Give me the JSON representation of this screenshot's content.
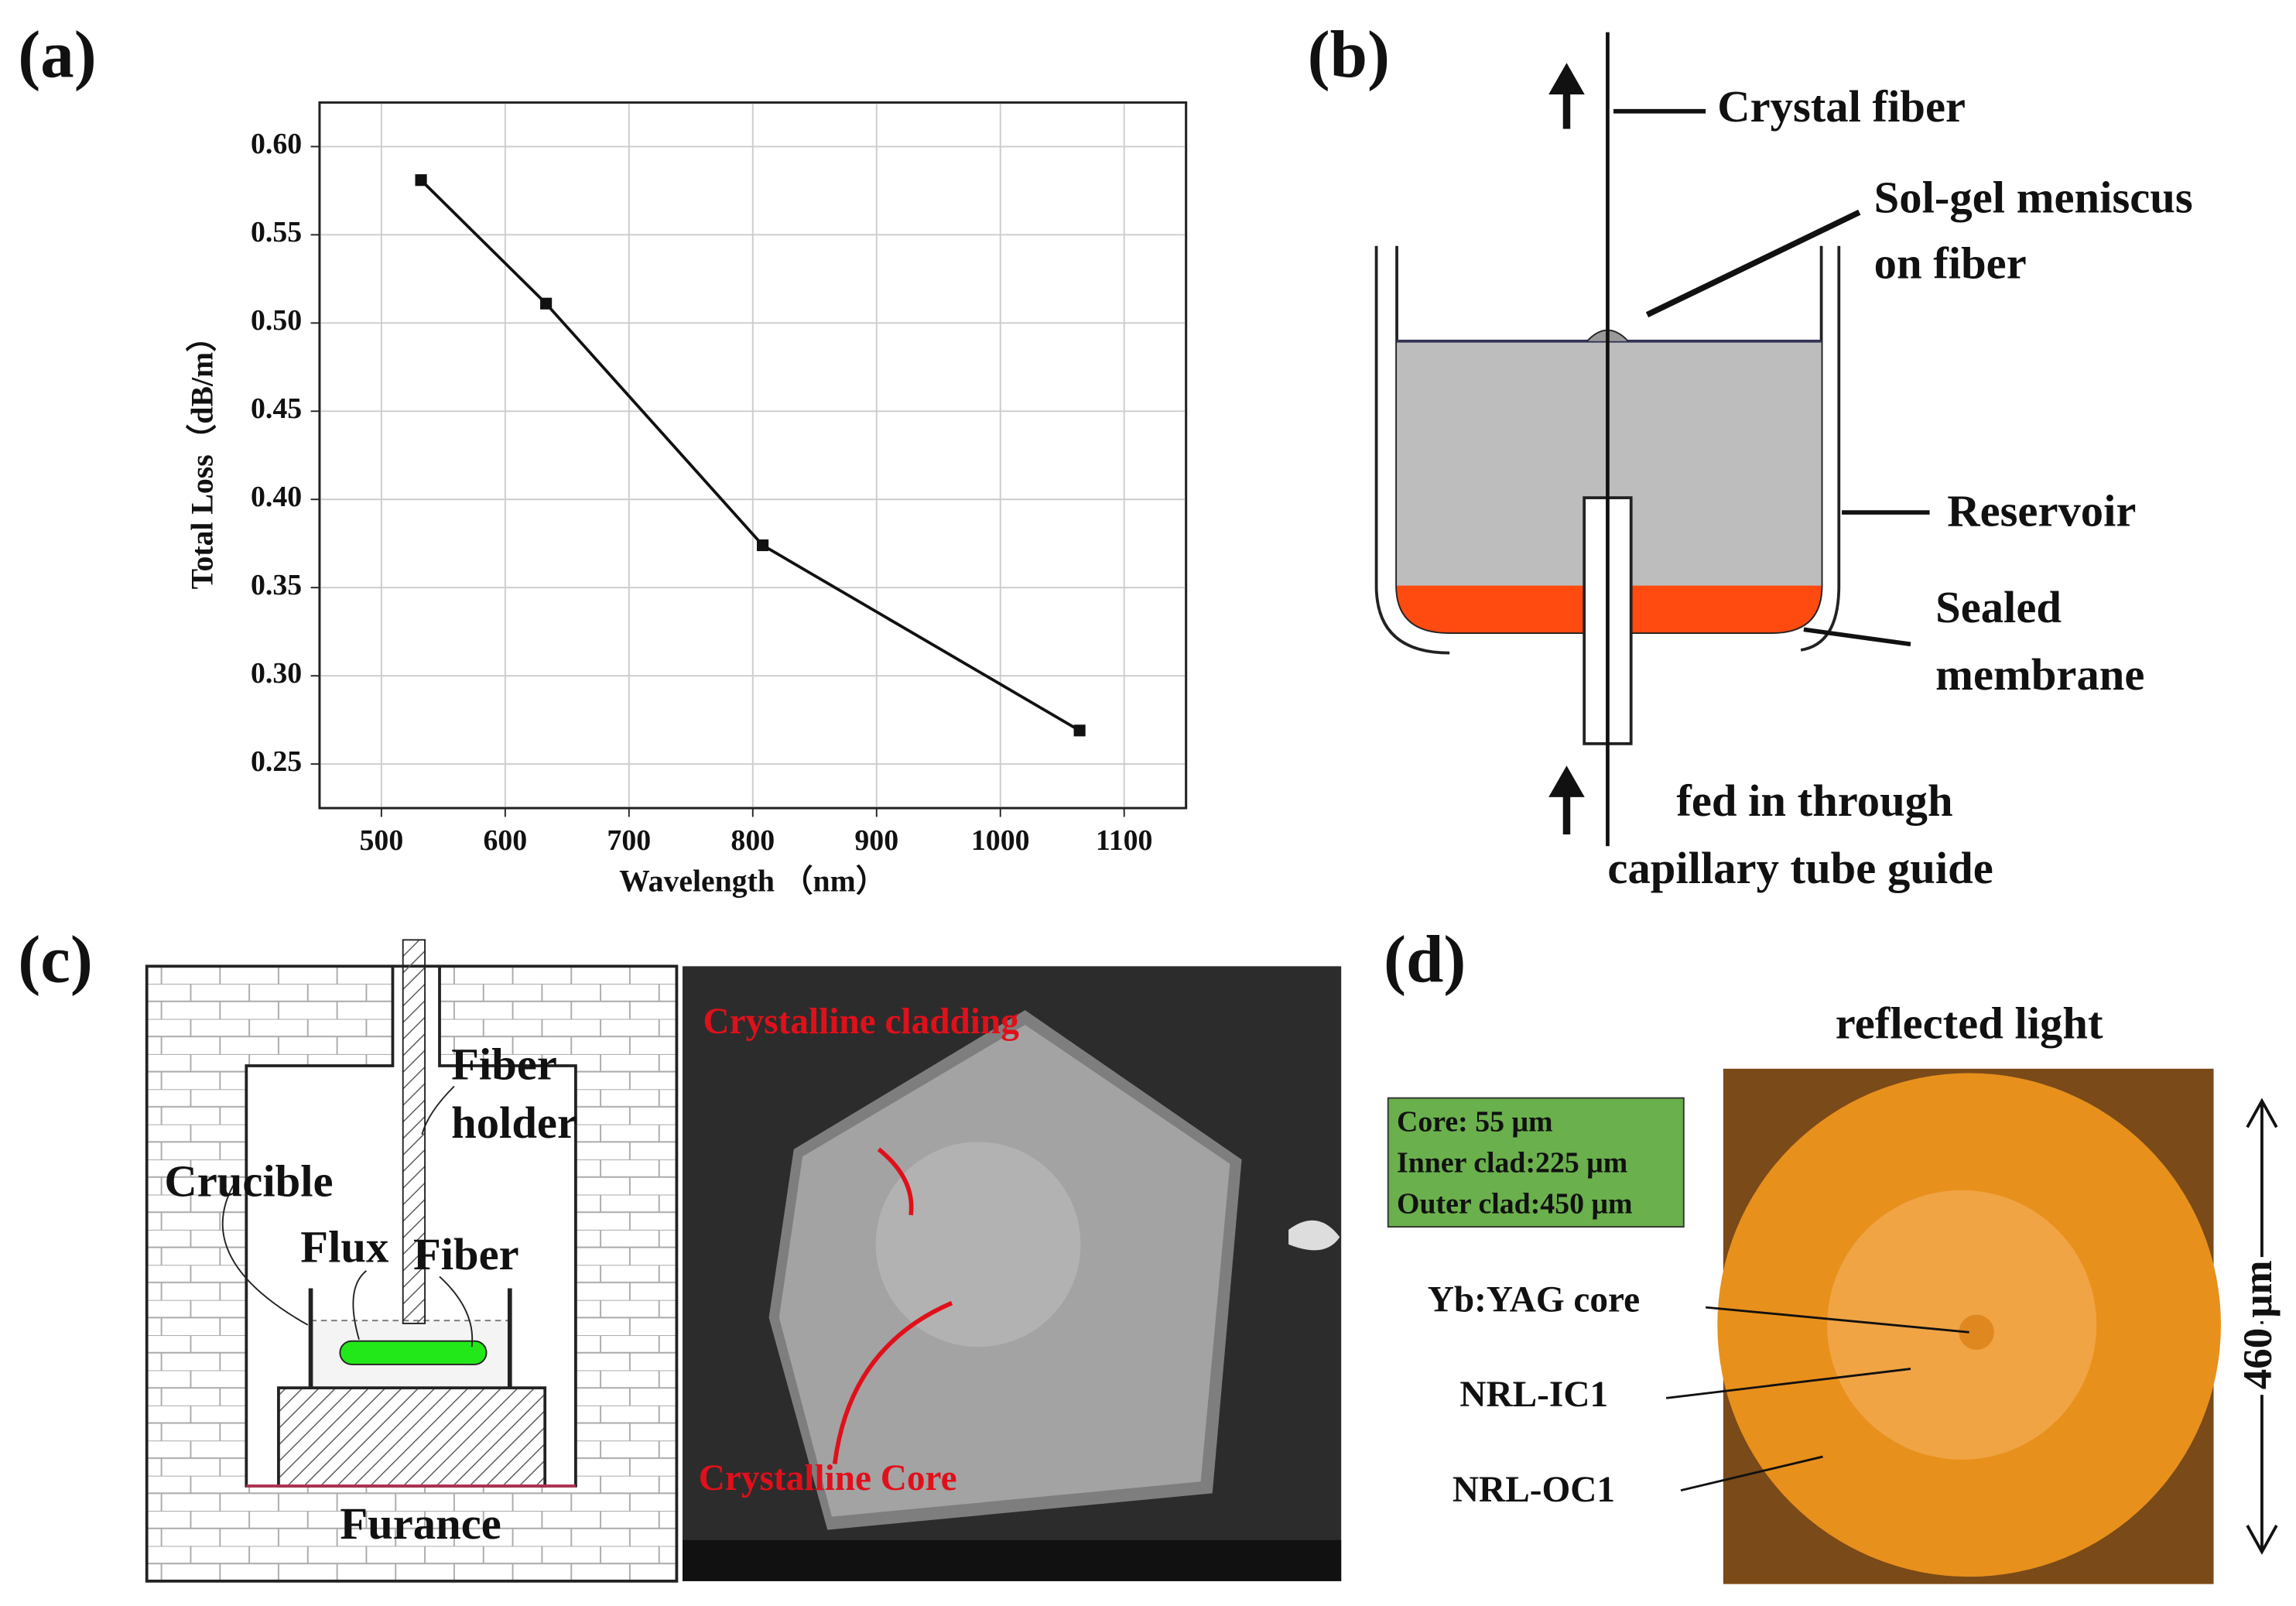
{
  "chart_data": {
    "type": "line",
    "x_label": "Wavelength （nm）",
    "y_label": "Total Loss（dB/m）",
    "series": [
      {
        "name": "Total Loss",
        "color": "#111111",
        "x": [
          532,
          633,
          808,
          1064
        ],
        "values": [
          0.581,
          0.511,
          0.374,
          0.269
        ]
      }
    ],
    "xlim": [
      450,
      1150
    ],
    "ylim": [
      0.225,
      0.625
    ],
    "xticks": [
      500,
      600,
      700,
      800,
      900,
      1000,
      1100
    ],
    "yticks": [
      {
        "value": 0.25,
        "label": "0.25"
      },
      {
        "value": 0.3,
        "label": "0.30"
      },
      {
        "value": 0.35,
        "label": "0.35"
      },
      {
        "value": 0.4,
        "label": "0.40"
      },
      {
        "value": 0.45,
        "label": "0.45"
      },
      {
        "value": 0.5,
        "label": "0.50"
      },
      {
        "value": 0.55,
        "label": "0.55"
      },
      {
        "value": 0.6,
        "label": "0.60"
      }
    ],
    "grid": true
  },
  "panels": {
    "a": "(a)",
    "b": "(b)",
    "c": "(c)",
    "d": "(d)"
  },
  "panel_b": {
    "crystal_fiber": "Crystal fiber",
    "meniscus": [
      "Sol-gel meniscus",
      "on fiber"
    ],
    "reservoir": "Reservoir",
    "membrane": [
      "Sealed",
      "membrane"
    ],
    "feed": [
      "fed in through",
      "capillary tube guide"
    ]
  },
  "panel_c": {
    "fiber_holder": [
      "Fiber",
      "holder"
    ],
    "crucible": "Crucible",
    "flux": "Flux",
    "fiber": "Fiber",
    "furnace": "Furance",
    "cladding": "Crystalline cladding",
    "core": "Crystalline Core"
  },
  "panel_d": {
    "title": "reflected light",
    "specs": [
      "Core:  55 μm",
      "Inner clad:225 μm",
      "Outer clad:450 μm"
    ],
    "labels": [
      "Yb:YAG core",
      "NRL-IC1",
      "NRL-OC1"
    ],
    "scale": "460 μm"
  }
}
